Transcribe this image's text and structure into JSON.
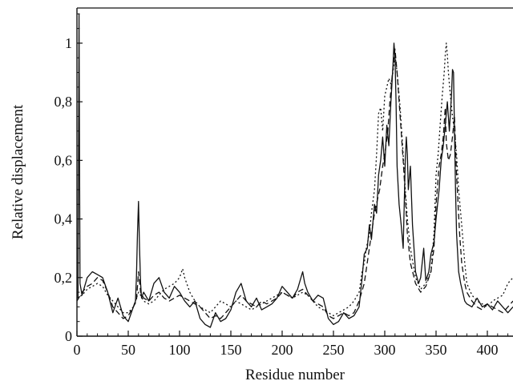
{
  "chart_data": {
    "type": "line",
    "xlabel": "Residue number",
    "ylabel": "Relative displacement",
    "xlim": [
      0,
      425
    ],
    "ylim": [
      0,
      1.12
    ],
    "grid": false,
    "legend": "none",
    "x_ticks": [
      {
        "value": 0,
        "label": "0"
      },
      {
        "value": 50,
        "label": "50"
      },
      {
        "value": 100,
        "label": "100"
      },
      {
        "value": 150,
        "label": "150"
      },
      {
        "value": 200,
        "label": "200"
      },
      {
        "value": 250,
        "label": "250"
      },
      {
        "value": 300,
        "label": "300"
      },
      {
        "value": 350,
        "label": "350"
      },
      {
        "value": 400,
        "label": "400"
      }
    ],
    "y_ticks": [
      {
        "value": 0,
        "label": "0"
      },
      {
        "value": 0.2,
        "label": "0,2"
      },
      {
        "value": 0.4,
        "label": "0,4"
      },
      {
        "value": 0.6,
        "label": "0,6"
      },
      {
        "value": 0.8,
        "label": "0,8"
      },
      {
        "value": 1.0,
        "label": "1"
      }
    ],
    "series": [
      {
        "style": "solid",
        "color": "#111111",
        "x": [
          1,
          2,
          3,
          5,
          10,
          15,
          20,
          25,
          30,
          35,
          40,
          45,
          50,
          55,
          57,
          58,
          59,
          60,
          61,
          62,
          63,
          65,
          70,
          75,
          80,
          85,
          90,
          95,
          100,
          105,
          110,
          115,
          120,
          125,
          130,
          135,
          140,
          145,
          150,
          155,
          160,
          165,
          170,
          175,
          180,
          185,
          190,
          195,
          200,
          205,
          210,
          215,
          220,
          222,
          225,
          230,
          235,
          240,
          245,
          250,
          255,
          260,
          265,
          270,
          275,
          278,
          280,
          283,
          285,
          287,
          290,
          292,
          294,
          296,
          298,
          300,
          302,
          304,
          306,
          308,
          309,
          310,
          311,
          312,
          314,
          316,
          318,
          320,
          321,
          322,
          323,
          325,
          327,
          330,
          333,
          335,
          338,
          340,
          343,
          345,
          348,
          350,
          353,
          355,
          357,
          359,
          361,
          363,
          365,
          366,
          367,
          368,
          369,
          370,
          372,
          374,
          376,
          378,
          380,
          385,
          390,
          395,
          400,
          405,
          410,
          415,
          420,
          425
        ],
        "y": [
          0.13,
          1.1,
          0.18,
          0.14,
          0.2,
          0.22,
          0.21,
          0.2,
          0.15,
          0.08,
          0.13,
          0.07,
          0.05,
          0.1,
          0.12,
          0.2,
          0.35,
          0.46,
          0.3,
          0.18,
          0.13,
          0.15,
          0.12,
          0.18,
          0.2,
          0.15,
          0.13,
          0.17,
          0.15,
          0.12,
          0.1,
          0.12,
          0.06,
          0.04,
          0.03,
          0.08,
          0.05,
          0.06,
          0.09,
          0.15,
          0.18,
          0.12,
          0.1,
          0.13,
          0.09,
          0.1,
          0.11,
          0.13,
          0.17,
          0.15,
          0.13,
          0.16,
          0.22,
          0.18,
          0.15,
          0.12,
          0.14,
          0.13,
          0.06,
          0.04,
          0.05,
          0.08,
          0.06,
          0.07,
          0.1,
          0.2,
          0.28,
          0.3,
          0.38,
          0.33,
          0.45,
          0.42,
          0.55,
          0.6,
          0.68,
          0.58,
          0.72,
          0.65,
          0.8,
          0.92,
          1.0,
          0.95,
          0.8,
          0.58,
          0.45,
          0.38,
          0.3,
          0.6,
          0.68,
          0.62,
          0.5,
          0.58,
          0.38,
          0.22,
          0.18,
          0.2,
          0.3,
          0.19,
          0.22,
          0.28,
          0.32,
          0.4,
          0.5,
          0.6,
          0.65,
          0.72,
          0.8,
          0.7,
          0.82,
          0.91,
          0.9,
          0.7,
          0.5,
          0.35,
          0.22,
          0.18,
          0.15,
          0.12,
          0.11,
          0.1,
          0.13,
          0.1,
          0.11,
          0.09,
          0.12,
          0.1,
          0.08,
          0.1
        ]
      },
      {
        "style": "dashed",
        "color": "#111111",
        "x": [
          0,
          5,
          10,
          15,
          20,
          25,
          30,
          35,
          40,
          45,
          50,
          55,
          58,
          60,
          62,
          65,
          70,
          75,
          80,
          85,
          90,
          95,
          100,
          105,
          110,
          115,
          120,
          125,
          130,
          135,
          140,
          145,
          150,
          155,
          160,
          165,
          170,
          175,
          180,
          185,
          190,
          195,
          200,
          205,
          210,
          215,
          220,
          225,
          230,
          235,
          240,
          245,
          250,
          255,
          260,
          265,
          270,
          275,
          280,
          285,
          290,
          295,
          298,
          300,
          303,
          305,
          307,
          309,
          310,
          312,
          315,
          318,
          320,
          322,
          325,
          330,
          335,
          340,
          345,
          348,
          350,
          353,
          355,
          357,
          359,
          360,
          362,
          364,
          366,
          368,
          370,
          373,
          375,
          378,
          380,
          385,
          390,
          395,
          400,
          405,
          410,
          415,
          420,
          425
        ],
        "y": [
          0.12,
          0.15,
          0.17,
          0.18,
          0.2,
          0.19,
          0.15,
          0.1,
          0.08,
          0.06,
          0.07,
          0.1,
          0.12,
          0.22,
          0.15,
          0.13,
          0.12,
          0.14,
          0.15,
          0.13,
          0.12,
          0.13,
          0.14,
          0.13,
          0.12,
          0.11,
          0.1,
          0.08,
          0.06,
          0.07,
          0.06,
          0.08,
          0.1,
          0.12,
          0.14,
          0.12,
          0.11,
          0.1,
          0.12,
          0.11,
          0.12,
          0.13,
          0.15,
          0.14,
          0.13,
          0.15,
          0.16,
          0.14,
          0.12,
          0.11,
          0.1,
          0.07,
          0.06,
          0.07,
          0.08,
          0.07,
          0.08,
          0.12,
          0.18,
          0.3,
          0.42,
          0.5,
          0.58,
          0.62,
          0.7,
          0.8,
          0.88,
          0.95,
          0.98,
          0.9,
          0.75,
          0.6,
          0.48,
          0.35,
          0.25,
          0.18,
          0.15,
          0.17,
          0.22,
          0.3,
          0.45,
          0.58,
          0.62,
          0.68,
          0.78,
          0.66,
          0.6,
          0.62,
          0.68,
          0.75,
          0.55,
          0.35,
          0.25,
          0.18,
          0.15,
          0.12,
          0.1,
          0.09,
          0.11,
          0.1,
          0.09,
          0.08,
          0.1,
          0.12
        ]
      },
      {
        "style": "dotted",
        "color": "#111111",
        "x": [
          0,
          5,
          10,
          15,
          20,
          25,
          30,
          35,
          40,
          45,
          50,
          55,
          58,
          60,
          62,
          65,
          70,
          75,
          80,
          85,
          90,
          95,
          100,
          103,
          105,
          110,
          115,
          120,
          125,
          130,
          135,
          140,
          145,
          150,
          155,
          160,
          165,
          170,
          175,
          180,
          185,
          190,
          195,
          200,
          205,
          210,
          215,
          220,
          225,
          230,
          235,
          240,
          245,
          250,
          255,
          260,
          265,
          270,
          275,
          278,
          280,
          282,
          285,
          287,
          290,
          292,
          294,
          296,
          298,
          300,
          302,
          304,
          306,
          308,
          310,
          312,
          315,
          318,
          320,
          322,
          325,
          330,
          335,
          340,
          345,
          348,
          350,
          352,
          354,
          356,
          358,
          359,
          360,
          361,
          362,
          364,
          366,
          368,
          370,
          372,
          375,
          378,
          380,
          385,
          390,
          395,
          400,
          405,
          410,
          415,
          420,
          425
        ],
        "y": [
          0.13,
          0.14,
          0.16,
          0.17,
          0.18,
          0.17,
          0.14,
          0.12,
          0.1,
          0.08,
          0.08,
          0.1,
          0.13,
          0.15,
          0.14,
          0.12,
          0.11,
          0.12,
          0.14,
          0.16,
          0.17,
          0.18,
          0.2,
          0.23,
          0.2,
          0.15,
          0.12,
          0.1,
          0.09,
          0.08,
          0.1,
          0.12,
          0.11,
          0.1,
          0.12,
          0.11,
          0.1,
          0.09,
          0.1,
          0.11,
          0.12,
          0.13,
          0.14,
          0.15,
          0.14,
          0.13,
          0.14,
          0.15,
          0.14,
          0.12,
          0.1,
          0.09,
          0.08,
          0.07,
          0.08,
          0.09,
          0.1,
          0.12,
          0.15,
          0.22,
          0.25,
          0.3,
          0.35,
          0.42,
          0.5,
          0.62,
          0.76,
          0.78,
          0.7,
          0.82,
          0.85,
          0.88,
          0.86,
          0.9,
          0.96,
          0.9,
          0.78,
          0.62,
          0.5,
          0.4,
          0.3,
          0.2,
          0.16,
          0.18,
          0.22,
          0.35,
          0.55,
          0.62,
          0.72,
          0.82,
          0.9,
          0.96,
          1.0,
          0.96,
          0.9,
          0.82,
          0.75,
          0.7,
          0.62,
          0.5,
          0.38,
          0.25,
          0.18,
          0.14,
          0.12,
          0.11,
          0.1,
          0.12,
          0.13,
          0.14,
          0.18,
          0.2
        ]
      }
    ]
  }
}
